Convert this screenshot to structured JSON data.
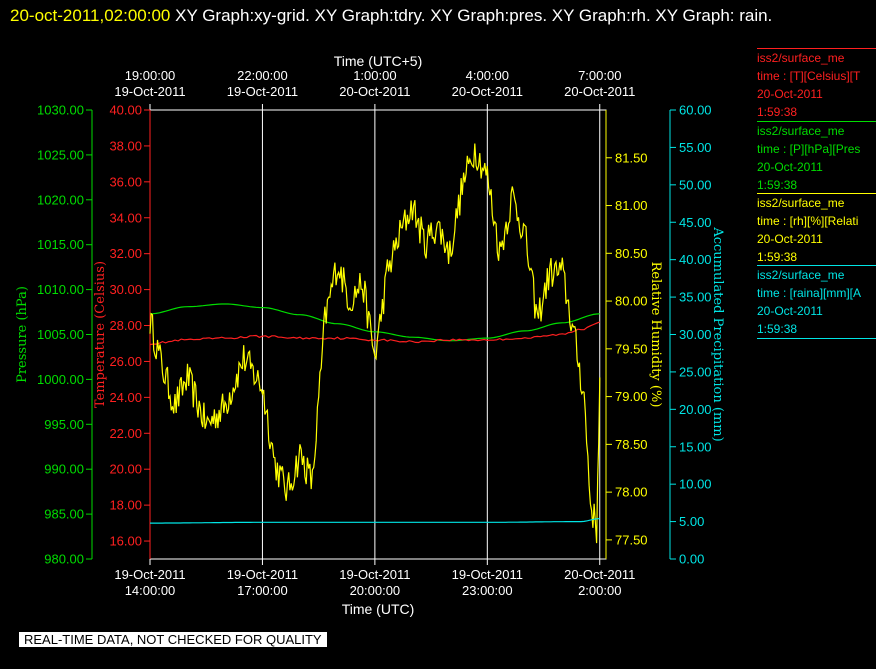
{
  "header": {
    "timestamp": "20-oct-2011,02:00:00",
    "text": "XY Graph:xy-grid.  XY Graph:tdry.  XY Graph:pres.  XY Graph:rh.  XY Graph: rain."
  },
  "colors": {
    "background": "#000000",
    "pressure": "#00dd00",
    "temperature": "#ff2020",
    "humidity": "#ffff00",
    "precipitation": "#00e5e5",
    "grid": "#ffffff"
  },
  "legend": [
    {
      "series": "iss2/surface_me",
      "line2": "time : [T][Celsius][T",
      "date": "20-Oct-2011",
      "time": "1:59:38",
      "color": "#ff2020"
    },
    {
      "series": "iss2/surface_me",
      "line2": "time : [P][hPa][Pres",
      "date": "20-Oct-2011",
      "time": "1:59:38",
      "color": "#00dd00"
    },
    {
      "series": "iss2/surface_me",
      "line2": "time : [rh][%][Relati",
      "date": "20-Oct-2011",
      "time": "1:59:38",
      "color": "#ffff00"
    },
    {
      "series": "iss2/surface_me",
      "line2": "time : [raina][mm][A",
      "date": "20-Oct-2011",
      "time": "1:59:38",
      "color": "#00e5e5"
    }
  ],
  "disclaimer": "REAL-TIME DATA, NOT CHECKED FOR QUALITY",
  "chart_data": {
    "type": "line",
    "grid": true,
    "xlim": [
      "2011-10-19T14:00:00",
      "2011-10-20T02:10:00"
    ],
    "x_axis_bottom": {
      "label": "Time (UTC)",
      "ticks": [
        {
          "date": "19-Oct-2011",
          "time": "14:00:00",
          "value": "2011-10-19T14:00:00"
        },
        {
          "date": "19-Oct-2011",
          "time": "17:00:00",
          "value": "2011-10-19T17:00:00"
        },
        {
          "date": "19-Oct-2011",
          "time": "20:00:00",
          "value": "2011-10-19T20:00:00"
        },
        {
          "date": "19-Oct-2011",
          "time": "23:00:00",
          "value": "2011-10-19T23:00:00"
        },
        {
          "date": "20-Oct-2011",
          "time": "2:00:00",
          "value": "2011-10-20T02:00:00"
        }
      ]
    },
    "x_axis_top": {
      "label": "Time (UTC+5)",
      "ticks": [
        {
          "date": "19-Oct-2011",
          "time": "19:00:00",
          "value": "2011-10-19T14:00:00"
        },
        {
          "date": "19-Oct-2011",
          "time": "22:00:00",
          "value": "2011-10-19T17:00:00"
        },
        {
          "date": "20-Oct-2011",
          "time": "1:00:00",
          "value": "2011-10-19T20:00:00"
        },
        {
          "date": "20-Oct-2011",
          "time": "4:00:00",
          "value": "2011-10-19T23:00:00"
        },
        {
          "date": "20-Oct-2011",
          "time": "7:00:00",
          "value": "2011-10-20T02:00:00"
        }
      ]
    },
    "y_axes": [
      {
        "id": "pressure",
        "label": "Pressure (hPa)",
        "min": 980,
        "max": 1030,
        "ticks": [
          "980.00",
          "985.00",
          "990.00",
          "995.00",
          "1000.00",
          "1005.00",
          "1010.00",
          "1015.00",
          "1020.00",
          "1025.00",
          "1030.00"
        ]
      },
      {
        "id": "temperature",
        "label": "Temperature (Celsius)",
        "min": 15,
        "max": 40,
        "ticks": [
          "16.00",
          "18.00",
          "20.00",
          "22.00",
          "24.00",
          "26.00",
          "28.00",
          "30.00",
          "32.00",
          "34.00",
          "36.00",
          "38.00",
          "40.00"
        ]
      },
      {
        "id": "humidity",
        "label": "Relative Humidity (%)",
        "min": 77.3,
        "max": 82.0,
        "ticks": [
          "77.50",
          "78.00",
          "78.50",
          "79.00",
          "79.50",
          "80.00",
          "80.50",
          "81.00",
          "81.50"
        ]
      },
      {
        "id": "precipitation",
        "label": "Accumulated Precipitation (mm)",
        "min": 0,
        "max": 60,
        "ticks": [
          "0.00",
          "5.00",
          "10.00",
          "15.00",
          "20.00",
          "25.00",
          "30.00",
          "35.00",
          "40.00",
          "45.00",
          "50.00",
          "55.00",
          "60.00"
        ]
      }
    ],
    "series": [
      {
        "id": "pressure",
        "axis": "pressure",
        "x": [
          "2011-10-19T14:00:00",
          "2011-10-19T15:00:00",
          "2011-10-19T16:00:00",
          "2011-10-19T17:00:00",
          "2011-10-19T18:00:00",
          "2011-10-19T19:00:00",
          "2011-10-19T20:00:00",
          "2011-10-19T21:00:00",
          "2011-10-19T22:00:00",
          "2011-10-19T23:00:00",
          "2011-10-20T00:00:00",
          "2011-10-20T01:00:00",
          "2011-10-20T02:00:00"
        ],
        "y": [
          1007.3,
          1008.1,
          1008.4,
          1008.0,
          1007.2,
          1006.2,
          1005.3,
          1004.7,
          1004.3,
          1004.6,
          1005.4,
          1006.3,
          1007.3
        ]
      },
      {
        "id": "temperature",
        "axis": "temperature",
        "x": [
          "2011-10-19T14:00:00",
          "2011-10-19T15:00:00",
          "2011-10-19T16:00:00",
          "2011-10-19T17:00:00",
          "2011-10-19T18:00:00",
          "2011-10-19T19:00:00",
          "2011-10-19T20:00:00",
          "2011-10-19T21:00:00",
          "2011-10-19T22:00:00",
          "2011-10-19T23:00:00",
          "2011-10-20T00:00:00",
          "2011-10-20T01:00:00",
          "2011-10-20T01:30:00",
          "2011-10-20T02:00:00"
        ],
        "y": [
          27.0,
          27.2,
          27.3,
          27.4,
          27.3,
          27.3,
          27.2,
          27.1,
          27.2,
          27.2,
          27.3,
          27.5,
          27.8,
          28.2
        ]
      },
      {
        "id": "humidity",
        "axis": "humidity",
        "x": [
          "2011-10-19T14:00:00",
          "2011-10-19T14:20:00",
          "2011-10-19T14:40:00",
          "2011-10-19T15:00:00",
          "2011-10-19T15:30:00",
          "2011-10-19T16:00:00",
          "2011-10-19T16:30:00",
          "2011-10-19T17:00:00",
          "2011-10-19T17:20:00",
          "2011-10-19T17:40:00",
          "2011-10-19T18:00:00",
          "2011-10-19T18:20:00",
          "2011-10-19T18:40:00",
          "2011-10-19T19:00:00",
          "2011-10-19T19:20:00",
          "2011-10-19T19:40:00",
          "2011-10-19T20:00:00",
          "2011-10-19T20:20:00",
          "2011-10-19T20:40:00",
          "2011-10-19T21:00:00",
          "2011-10-19T21:20:00",
          "2011-10-19T21:40:00",
          "2011-10-19T22:00:00",
          "2011-10-19T22:20:00",
          "2011-10-19T22:40:00",
          "2011-10-19T23:00:00",
          "2011-10-19T23:20:00",
          "2011-10-19T23:40:00",
          "2011-10-20T00:00:00",
          "2011-10-20T00:20:00",
          "2011-10-20T00:40:00",
          "2011-10-20T01:00:00",
          "2011-10-20T01:20:00",
          "2011-10-20T01:35:00",
          "2011-10-20T01:45:00",
          "2011-10-20T01:55:00",
          "2011-10-20T02:00:00"
        ],
        "y": [
          79.8,
          79.3,
          78.9,
          79.2,
          78.7,
          78.9,
          79.4,
          79.1,
          78.3,
          78.0,
          78.4,
          78.1,
          79.8,
          80.4,
          80.0,
          80.2,
          79.4,
          80.3,
          80.7,
          81.0,
          80.6,
          80.8,
          80.5,
          81.2,
          81.6,
          81.3,
          80.5,
          81.1,
          80.7,
          79.8,
          80.3,
          80.3,
          79.6,
          79.0,
          77.9,
          77.6,
          79.2
        ]
      },
      {
        "id": "precipitation",
        "axis": "precipitation",
        "x": [
          "2011-10-19T14:00:00",
          "2011-10-19T17:00:00",
          "2011-10-19T20:00:00",
          "2011-10-19T23:00:00",
          "2011-10-20T01:30:00",
          "2011-10-20T02:00:00"
        ],
        "y": [
          4.8,
          4.9,
          4.9,
          4.9,
          5.0,
          5.4
        ]
      }
    ]
  }
}
